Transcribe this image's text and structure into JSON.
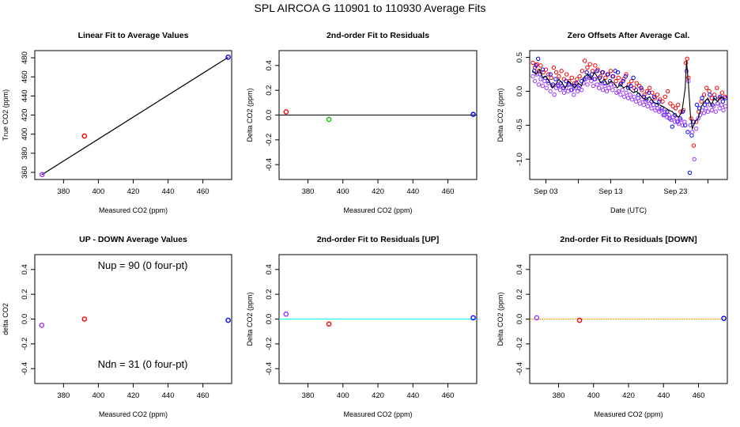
{
  "figure_title": "SPL   AIRCOA G   110901 to 110930   Average Fits",
  "colors": {
    "red": "#ff0000",
    "green": "#00cc00",
    "blue": "#0000ff",
    "purple": "#9933ff",
    "cyan": "#00ffff",
    "orange": "#ff9900",
    "black": "#000000",
    "gray": "#555555"
  },
  "chart_data": [
    {
      "id": "linear-fit",
      "type": "scatter",
      "title": "Linear Fit to Average Values",
      "xlabel": "Measured CO2 (ppm)",
      "ylabel": "True CO2 (ppm)",
      "xlim": [
        363.5,
        476.5
      ],
      "ylim": [
        352.5,
        487.5
      ],
      "xticks": [
        380,
        400,
        420,
        440,
        460
      ],
      "yticks": [
        360,
        380,
        400,
        420,
        440,
        460,
        480
      ],
      "lines": [
        {
          "name": "fit",
          "x": [
            367.5,
            474.5
          ],
          "y": [
            357.5,
            480.5
          ],
          "color": "black"
        }
      ],
      "points": [
        {
          "x": 367.7,
          "y": 357.6,
          "color": "purple"
        },
        {
          "x": 392.0,
          "y": 398.0,
          "color": "red"
        },
        {
          "x": 474.5,
          "y": 480.6,
          "color": "blue"
        }
      ]
    },
    {
      "id": "residuals",
      "type": "scatter",
      "title": "2nd-order Fit to Residuals",
      "xlabel": "Measured CO2 (ppm)",
      "ylabel": "Delta CO2 (ppm)",
      "xlim": [
        363.5,
        476.5
      ],
      "ylim": [
        -0.52,
        0.52
      ],
      "xticks": [
        380,
        400,
        420,
        440,
        460
      ],
      "yticks": [
        -0.4,
        -0.2,
        0.0,
        0.2,
        0.4
      ],
      "hlines": [
        {
          "y": 0.0,
          "color": "black"
        }
      ],
      "points": [
        {
          "x": 367.5,
          "y": 0.025,
          "color": "red"
        },
        {
          "x": 392.0,
          "y": -0.035,
          "color": "green"
        },
        {
          "x": 474.5,
          "y": 0.005,
          "color": "blue"
        }
      ]
    },
    {
      "id": "zero-offsets",
      "type": "line",
      "title": "Zero Offsets After Average Cal.",
      "xlabel": "Date (UTC)",
      "ylabel": "Delta CO2 (ppm)",
      "xlim": [
        0.5,
        31.0
      ],
      "ylim": [
        -1.3,
        0.6
      ],
      "xticks": [
        3,
        13,
        23
      ],
      "xtick_labels": [
        "Sep 03",
        "Sep 13",
        "Sep 23"
      ],
      "xminor_ticks": [
        8,
        18,
        28
      ],
      "yticks": [
        -1.0,
        -0.5,
        0.0,
        0.5
      ],
      "mean_curve": {
        "color": "black",
        "x": [
          1.0,
          1.5,
          2.0,
          2.5,
          3.0,
          3.5,
          4.0,
          4.5,
          5.0,
          5.5,
          6.0,
          6.5,
          7.0,
          7.5,
          8.0,
          8.5,
          9.0,
          9.5,
          10.0,
          10.5,
          11.0,
          11.5,
          12.0,
          12.5,
          13.0,
          13.5,
          14.0,
          14.5,
          15.0,
          15.5,
          16.0,
          16.5,
          17.0,
          17.5,
          18.0,
          18.5,
          19.0,
          19.5,
          20.0,
          20.5,
          21.0,
          21.5,
          22.0,
          22.5,
          23.0,
          23.5,
          24.0,
          24.5,
          24.7,
          25.0,
          25.3,
          25.6,
          26.0,
          26.5,
          27.0,
          27.5,
          28.0,
          28.5,
          29.0,
          29.5,
          30.0,
          30.5
        ],
        "y": [
          0.3,
          0.25,
          0.32,
          0.2,
          0.22,
          0.15,
          0.05,
          0.1,
          0.18,
          0.12,
          0.05,
          0.15,
          0.1,
          0.05,
          0.12,
          0.08,
          0.22,
          0.25,
          0.18,
          0.28,
          0.2,
          0.12,
          0.18,
          0.1,
          0.15,
          0.12,
          0.05,
          0.1,
          0.05,
          0.08,
          0.02,
          -0.02,
          0.0,
          -0.05,
          -0.1,
          -0.12,
          -0.08,
          -0.15,
          -0.18,
          -0.2,
          -0.22,
          -0.25,
          -0.28,
          -0.3,
          -0.35,
          -0.38,
          -0.3,
          0.05,
          0.45,
          0.1,
          -0.35,
          -0.55,
          -0.45,
          -0.4,
          -0.22,
          -0.15,
          -0.1,
          -0.2,
          -0.1,
          -0.15,
          -0.08,
          -0.12
        ]
      },
      "series": [
        {
          "name": "red-points",
          "color": "red",
          "x": [
            1.0,
            1.3,
            1.6,
            1.9,
            2.2,
            2.6,
            3.0,
            3.4,
            3.8,
            4.2,
            4.6,
            5.0,
            5.4,
            5.8,
            6.2,
            6.6,
            7.0,
            7.4,
            7.8,
            8.2,
            8.6,
            9.0,
            9.4,
            9.8,
            10.2,
            10.6,
            11.0,
            11.4,
            11.8,
            12.2,
            12.6,
            13.0,
            13.4,
            13.8,
            14.2,
            14.6,
            15.0,
            15.4,
            15.8,
            16.2,
            16.6,
            17.0,
            17.4,
            17.8,
            18.2,
            18.6,
            19.0,
            19.4,
            19.8,
            20.2,
            20.6,
            21.0,
            21.4,
            21.8,
            22.2,
            22.6,
            23.0,
            23.4,
            23.8,
            24.2,
            24.6,
            24.8,
            25.0,
            25.4,
            25.8,
            26.2,
            26.6,
            27.0,
            27.4,
            27.8,
            28.2,
            28.6,
            29.0,
            29.4,
            29.8,
            30.2,
            30.6
          ],
          "y": [
            0.42,
            0.35,
            0.4,
            0.3,
            0.38,
            0.28,
            0.32,
            0.25,
            0.2,
            0.35,
            0.28,
            0.22,
            0.3,
            0.18,
            0.25,
            0.15,
            0.2,
            0.12,
            0.18,
            0.22,
            0.3,
            0.45,
            0.35,
            0.4,
            0.3,
            0.38,
            0.32,
            0.22,
            0.28,
            0.2,
            0.25,
            0.3,
            0.22,
            0.15,
            0.2,
            0.12,
            0.18,
            0.25,
            0.1,
            0.15,
            0.05,
            0.12,
            0.08,
            0.02,
            -0.05,
            0.0,
            0.05,
            -0.02,
            -0.1,
            -0.05,
            -0.12,
            -0.15,
            -0.08,
            0.0,
            -0.18,
            -0.22,
            -0.25,
            -0.2,
            -0.3,
            -0.28,
            0.42,
            0.48,
            0.2,
            -0.4,
            -0.8,
            -0.45,
            -0.3,
            -0.15,
            -0.05,
            0.05,
            0.0,
            -0.1,
            -0.05,
            0.05,
            -0.1,
            -0.02,
            -0.08
          ]
        },
        {
          "name": "blue-points",
          "color": "blue",
          "x": [
            1.2,
            1.5,
            1.8,
            2.1,
            2.5,
            2.9,
            3.3,
            3.7,
            4.1,
            4.5,
            4.9,
            5.3,
            5.7,
            6.1,
            6.5,
            6.9,
            7.3,
            7.7,
            8.1,
            8.5,
            8.9,
            9.3,
            9.7,
            10.1,
            10.5,
            10.9,
            11.3,
            11.7,
            12.1,
            12.5,
            12.9,
            13.3,
            13.7,
            14.1,
            14.5,
            14.9,
            15.3,
            15.7,
            16.1,
            16.5,
            16.9,
            17.3,
            17.7,
            18.1,
            18.5,
            18.9,
            19.3,
            19.7,
            20.1,
            20.5,
            20.9,
            21.3,
            21.7,
            22.1,
            22.5,
            22.9,
            23.3,
            23.7,
            24.1,
            24.5,
            24.9,
            25.2,
            25.5,
            25.8,
            26.3,
            26.7,
            27.1,
            27.5,
            27.9,
            28.3,
            28.7,
            29.1,
            29.5,
            29.9,
            30.3,
            30.7
          ],
          "y": [
            0.3,
            0.38,
            0.48,
            0.25,
            0.32,
            0.2,
            0.15,
            0.25,
            0.1,
            0.18,
            0.08,
            0.12,
            0.05,
            0.15,
            0.1,
            0.02,
            0.08,
            0.12,
            0.05,
            0.15,
            0.18,
            0.28,
            0.22,
            0.25,
            0.18,
            0.3,
            0.2,
            0.28,
            0.12,
            0.25,
            0.15,
            0.22,
            0.3,
            0.28,
            0.1,
            0.15,
            0.22,
            0.05,
            0.08,
            0.2,
            0.02,
            -0.05,
            0.05,
            -0.08,
            -0.12,
            -0.02,
            -0.15,
            -0.08,
            -0.2,
            -0.15,
            -0.25,
            -0.35,
            -0.3,
            -0.4,
            -0.52,
            -0.35,
            -0.45,
            -0.4,
            -0.3,
            -0.5,
            -0.6,
            -1.2,
            -0.65,
            -0.45,
            -0.2,
            -0.25,
            -0.1,
            -0.2,
            -0.15,
            -0.05,
            -0.2,
            -0.1,
            -0.18,
            -0.08,
            -0.15,
            -0.1
          ]
        },
        {
          "name": "purple-points",
          "color": "purple",
          "x": [
            1.0,
            1.3,
            1.6,
            1.9,
            2.2,
            2.5,
            2.8,
            3.1,
            3.4,
            3.7,
            4.0,
            4.3,
            4.6,
            4.9,
            5.2,
            5.5,
            5.8,
            6.1,
            6.4,
            6.7,
            7.0,
            7.3,
            7.6,
            7.9,
            8.2,
            8.5,
            8.8,
            9.1,
            9.4,
            9.7,
            10.0,
            10.3,
            10.6,
            10.9,
            11.2,
            11.5,
            11.8,
            12.1,
            12.4,
            12.7,
            13.0,
            13.3,
            13.6,
            13.9,
            14.2,
            14.5,
            14.8,
            15.1,
            15.4,
            15.7,
            16.0,
            16.3,
            16.6,
            16.9,
            17.2,
            17.5,
            17.8,
            18.1,
            18.4,
            18.7,
            19.0,
            19.3,
            19.6,
            19.9,
            20.2,
            20.5,
            20.8,
            21.1,
            21.4,
            21.7,
            22.0,
            22.3,
            22.6,
            22.9,
            23.2,
            23.5,
            23.8,
            24.1,
            24.4,
            24.7,
            25.0,
            25.3,
            25.6,
            25.9,
            26.2,
            26.5,
            26.8,
            27.1,
            27.4,
            27.7,
            28.0,
            28.3,
            28.6,
            28.9,
            29.2,
            29.5,
            29.8,
            30.1,
            30.4,
            30.7
          ],
          "y": [
            0.22,
            0.15,
            0.25,
            0.1,
            0.18,
            0.08,
            0.15,
            0.05,
            0.12,
            0.0,
            0.08,
            -0.05,
            0.05,
            0.1,
            0.02,
            0.08,
            -0.02,
            0.05,
            0.0,
            0.1,
            0.02,
            -0.05,
            0.05,
            0.0,
            0.08,
            0.02,
            0.12,
            0.18,
            0.1,
            0.2,
            0.15,
            0.08,
            0.18,
            0.1,
            0.05,
            0.12,
            0.02,
            0.08,
            0.0,
            0.05,
            0.1,
            0.02,
            0.08,
            -0.02,
            0.0,
            -0.05,
            0.02,
            -0.08,
            -0.02,
            -0.1,
            -0.05,
            -0.12,
            -0.08,
            -0.15,
            -0.1,
            -0.18,
            -0.12,
            -0.2,
            -0.15,
            -0.22,
            -0.18,
            -0.25,
            -0.2,
            -0.28,
            -0.25,
            -0.3,
            -0.28,
            -0.35,
            -0.3,
            -0.38,
            -0.35,
            -0.42,
            -0.38,
            -0.45,
            -0.4,
            -0.48,
            -0.42,
            -0.5,
            -0.45,
            0.3,
            0.15,
            -0.5,
            -0.6,
            -1.0,
            -0.55,
            -0.4,
            -0.35,
            -0.28,
            -0.32,
            -0.25,
            -0.3,
            -0.2,
            -0.28,
            -0.22,
            -0.3,
            -0.18,
            -0.25,
            -0.2,
            -0.28,
            -0.22
          ]
        }
      ]
    },
    {
      "id": "up-down",
      "type": "scatter",
      "title": "UP - DOWN Average Values",
      "xlabel": "Measured CO2 (ppm)",
      "ylabel": "delta CO2",
      "xlim": [
        363.5,
        476.5
      ],
      "ylim": [
        -0.52,
        0.52
      ],
      "xticks": [
        380,
        400,
        420,
        440,
        460
      ],
      "yticks": [
        -0.4,
        -0.2,
        0.0,
        0.2,
        0.4
      ],
      "annotations": [
        "Nup = 90 (0 four-pt)",
        "Ndn = 31 (0 four-pt)"
      ],
      "points": [
        {
          "x": 367.5,
          "y": -0.05,
          "color": "purple"
        },
        {
          "x": 392.0,
          "y": 0.0,
          "color": "red"
        },
        {
          "x": 474.5,
          "y": -0.01,
          "color": "blue"
        }
      ]
    },
    {
      "id": "residuals-up",
      "type": "scatter",
      "title": "2nd-order Fit to Residuals [UP]",
      "xlabel": "Measured CO2 (ppm)",
      "ylabel": "Delta CO2 (ppm)",
      "xlim": [
        363.5,
        476.5
      ],
      "ylim": [
        -0.52,
        0.52
      ],
      "xticks": [
        380,
        400,
        420,
        440,
        460
      ],
      "yticks": [
        -0.4,
        -0.2,
        0.0,
        0.2,
        0.4
      ],
      "hlines": [
        {
          "y": 0.0,
          "color": "cyan"
        }
      ],
      "points": [
        {
          "x": 367.5,
          "y": 0.04,
          "color": "purple"
        },
        {
          "x": 392.0,
          "y": -0.04,
          "color": "red"
        },
        {
          "x": 474.5,
          "y": 0.01,
          "color": "blue"
        }
      ]
    },
    {
      "id": "residuals-down",
      "type": "scatter",
      "title": "2nd-order Fit to Residuals [DOWN]",
      "xlabel": "Measured CO2 (ppm)",
      "ylabel": "Delta CO2 (ppm)",
      "xlim": [
        363.5,
        476.5
      ],
      "ylim": [
        -0.52,
        0.52
      ],
      "xticks": [
        380,
        400,
        420,
        440,
        460
      ],
      "yticks": [
        -0.4,
        -0.2,
        0.0,
        0.2,
        0.4
      ],
      "hlines": [
        {
          "y": 0.0,
          "color": "orange",
          "dashed": true
        }
      ],
      "points": [
        {
          "x": 367.5,
          "y": 0.01,
          "color": "purple"
        },
        {
          "x": 392.0,
          "y": -0.01,
          "color": "red"
        },
        {
          "x": 474.5,
          "y": 0.005,
          "color": "blue"
        }
      ]
    }
  ]
}
